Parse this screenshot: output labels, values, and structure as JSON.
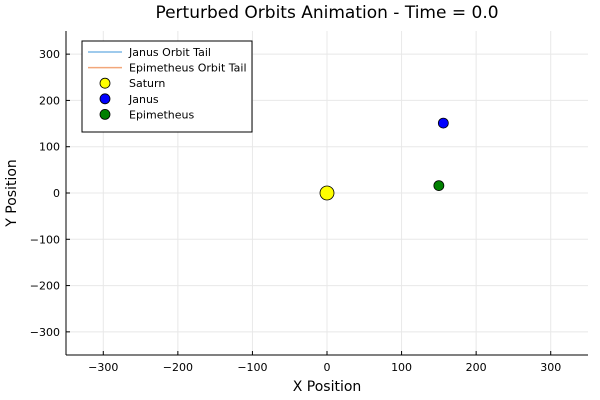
{
  "chart_data": {
    "type": "scatter",
    "title": "Perturbed Orbits Animation - Time = 0.0",
    "xlabel": "X Position",
    "ylabel": "Y Position",
    "xlim": [
      -350,
      350
    ],
    "ylim": [
      -350,
      350
    ],
    "xticks": [
      -300,
      -200,
      -100,
      0,
      100,
      200,
      300
    ],
    "yticks": [
      -300,
      -200,
      -100,
      0,
      100,
      200,
      300
    ],
    "grid": true,
    "legend_position": "top-left",
    "series": [
      {
        "name": "Janus Orbit Tail",
        "kind": "line",
        "color": "#7fb8e6",
        "x": [],
        "y": []
      },
      {
        "name": "Epimetheus Orbit Tail",
        "kind": "line",
        "color": "#f2a77a",
        "x": [],
        "y": []
      },
      {
        "name": "Saturn",
        "kind": "marker",
        "color": "#ffff00",
        "size": "large",
        "x": [
          0
        ],
        "y": [
          0
        ]
      },
      {
        "name": "Janus",
        "kind": "marker",
        "color": "#0000ff",
        "size": "medium",
        "x": [
          156
        ],
        "y": [
          151
        ]
      },
      {
        "name": "Epimetheus",
        "kind": "marker",
        "color": "#008000",
        "size": "medium",
        "x": [
          150
        ],
        "y": [
          16
        ]
      }
    ]
  }
}
